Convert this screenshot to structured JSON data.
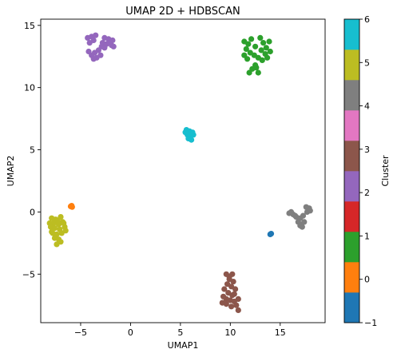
{
  "chart_data": {
    "type": "scatter",
    "title": "UMAP 2D + HDBSCAN",
    "xlabel": "UMAP1",
    "ylabel": "UMAP2",
    "xlim": [
      -9,
      19.5
    ],
    "ylim": [
      -8.9,
      15.5
    ],
    "xticks": [
      -5,
      0,
      5,
      10,
      15
    ],
    "xtick_labels": [
      "−5",
      "0",
      "5",
      "10",
      "15"
    ],
    "yticks": [
      -5,
      0,
      5,
      10,
      15
    ],
    "ytick_labels": [
      "−5",
      "0",
      "5",
      "10",
      "15"
    ],
    "grid": false,
    "colorbar": {
      "label": "Cluster",
      "ticks": [
        -1,
        0,
        1,
        2,
        3,
        4,
        5,
        6
      ],
      "tick_labels": [
        "−1",
        "0",
        "1",
        "2",
        "3",
        "4",
        "5",
        "6"
      ],
      "colors": [
        "#1f77b4",
        "#ff7f0e",
        "#2ca02c",
        "#d62728",
        "#9467bd",
        "#8c564b",
        "#e377c2",
        "#7f7f7f",
        "#bcbd22",
        "#17becf"
      ]
    },
    "series": [
      {
        "cluster": 0,
        "color": "#ff7f0e",
        "points": [
          [
            -6.0,
            0.45
          ],
          [
            -5.9,
            0.5
          ],
          [
            -5.85,
            0.4
          ]
        ]
      },
      {
        "cluster": -1,
        "color": "#1f77b4",
        "points": [
          [
            14.0,
            -1.8
          ],
          [
            14.1,
            -1.75
          ]
        ]
      },
      {
        "cluster": 5,
        "color": "#bcbd22",
        "points": [
          [
            -7.9,
            -0.5
          ],
          [
            -7.5,
            -0.6
          ],
          [
            -7.0,
            -0.4
          ],
          [
            -7.7,
            -0.9
          ],
          [
            -7.2,
            -1.0
          ],
          [
            -6.8,
            -0.8
          ],
          [
            -8.0,
            -1.2
          ],
          [
            -7.6,
            -1.3
          ],
          [
            -7.1,
            -1.4
          ],
          [
            -6.6,
            -1.2
          ],
          [
            -7.8,
            -1.7
          ],
          [
            -7.4,
            -1.8
          ],
          [
            -6.9,
            -1.7
          ],
          [
            -6.5,
            -1.5
          ],
          [
            -7.6,
            -2.1
          ],
          [
            -7.2,
            -2.2
          ],
          [
            -7.4,
            -2.6
          ],
          [
            -7.0,
            -2.4
          ],
          [
            -7.9,
            -1.6
          ],
          [
            -6.7,
            -0.9
          ],
          [
            -7.3,
            -0.7
          ],
          [
            -8.1,
            -0.9
          ]
        ]
      },
      {
        "cluster": 2,
        "color": "#9467bd",
        "points": [
          [
            -4.3,
            14.0
          ],
          [
            -3.9,
            14.1
          ],
          [
            -3.5,
            14.2
          ],
          [
            -4.1,
            13.6
          ],
          [
            -3.7,
            13.8
          ],
          [
            -2.6,
            14.0
          ],
          [
            -2.2,
            13.9
          ],
          [
            -1.8,
            13.8
          ],
          [
            -2.8,
            13.6
          ],
          [
            -2.4,
            13.5
          ],
          [
            -1.9,
            13.4
          ],
          [
            -2.9,
            13.3
          ],
          [
            -3.2,
            13.0
          ],
          [
            -3.6,
            12.8
          ],
          [
            -3.9,
            12.6
          ],
          [
            -3.4,
            12.4
          ],
          [
            -3.0,
            12.6
          ],
          [
            -2.6,
            13.2
          ],
          [
            -2.1,
            13.6
          ],
          [
            -1.7,
            13.3
          ],
          [
            -3.7,
            12.3
          ],
          [
            -4.2,
            12.9
          ]
        ]
      },
      {
        "cluster": 1,
        "color": "#2ca02c",
        "points": [
          [
            11.4,
            13.7
          ],
          [
            11.8,
            13.5
          ],
          [
            12.1,
            13.9
          ],
          [
            12.5,
            13.3
          ],
          [
            11.6,
            13.1
          ],
          [
            12.0,
            12.8
          ],
          [
            12.4,
            12.6
          ],
          [
            11.4,
            12.6
          ],
          [
            11.7,
            12.3
          ],
          [
            13.0,
            14.0
          ],
          [
            13.3,
            13.6
          ],
          [
            13.6,
            13.2
          ],
          [
            13.9,
            13.7
          ],
          [
            13.1,
            13.0
          ],
          [
            13.5,
            12.7
          ],
          [
            14.0,
            12.9
          ],
          [
            13.7,
            12.4
          ],
          [
            12.8,
            12.4
          ],
          [
            12.5,
            11.8
          ],
          [
            12.2,
            11.5
          ],
          [
            12.8,
            11.2
          ],
          [
            11.9,
            11.2
          ],
          [
            12.6,
            11.6
          ],
          [
            13.2,
            12.2
          ]
        ]
      },
      {
        "cluster": 6,
        "color": "#17becf",
        "points": [
          [
            5.6,
            6.6
          ],
          [
            5.9,
            6.5
          ],
          [
            6.2,
            6.4
          ],
          [
            5.7,
            6.2
          ],
          [
            6.0,
            6.1
          ],
          [
            5.8,
            5.9
          ],
          [
            6.1,
            5.8
          ],
          [
            5.5,
            6.4
          ],
          [
            6.3,
            6.2
          ],
          [
            5.9,
            6.3
          ]
        ]
      },
      {
        "cluster": 4,
        "color": "#7f7f7f",
        "points": [
          [
            15.9,
            -0.1
          ],
          [
            16.3,
            -0.2
          ],
          [
            16.6,
            -0.4
          ],
          [
            17.0,
            -0.5
          ],
          [
            16.8,
            -0.8
          ],
          [
            17.1,
            -1.0
          ],
          [
            17.4,
            -0.8
          ],
          [
            17.3,
            -0.3
          ],
          [
            17.7,
            0.0
          ],
          [
            17.9,
            0.3
          ],
          [
            17.6,
            0.4
          ],
          [
            18.0,
            0.1
          ],
          [
            16.1,
            0.0
          ],
          [
            17.2,
            -1.2
          ],
          [
            17.0,
            -1.1
          ],
          [
            16.5,
            -0.3
          ]
        ]
      },
      {
        "cluster": 3,
        "color": "#8c564b",
        "points": [
          [
            9.6,
            -5.0
          ],
          [
            10.2,
            -5.0
          ],
          [
            9.9,
            -5.4
          ],
          [
            10.3,
            -5.6
          ],
          [
            9.7,
            -5.8
          ],
          [
            10.1,
            -6.0
          ],
          [
            10.5,
            -6.2
          ],
          [
            9.4,
            -6.2
          ],
          [
            9.8,
            -6.5
          ],
          [
            10.2,
            -6.7
          ],
          [
            9.3,
            -6.8
          ],
          [
            9.6,
            -7.0
          ],
          [
            10.0,
            -7.1
          ],
          [
            10.4,
            -7.2
          ],
          [
            10.8,
            -7.0
          ],
          [
            9.2,
            -7.3
          ],
          [
            9.6,
            -7.4
          ],
          [
            10.1,
            -7.6
          ],
          [
            10.6,
            -7.5
          ],
          [
            10.8,
            -7.9
          ],
          [
            9.9,
            -5.2
          ],
          [
            10.4,
            -6.6
          ]
        ]
      }
    ]
  }
}
